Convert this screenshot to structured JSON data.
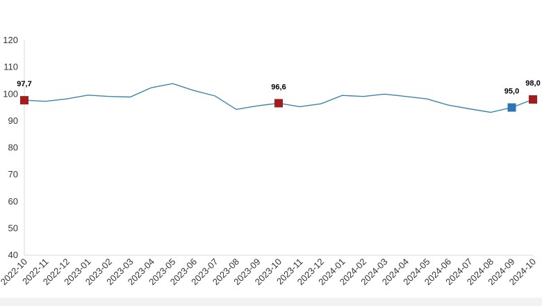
{
  "chart_data": {
    "type": "line",
    "title": "",
    "xlabel": "",
    "ylabel": "",
    "ylim": [
      40,
      120
    ],
    "yticks": [
      40,
      50,
      60,
      70,
      80,
      90,
      100,
      110,
      120
    ],
    "grid": false,
    "categories": [
      "2022-10",
      "2022-11",
      "2022-12",
      "2023-01",
      "2023-02",
      "2023-03",
      "2023-04",
      "2023-05",
      "2023-06",
      "2023-07",
      "2023-08",
      "2023-09",
      "2023-10",
      "2023-11",
      "2023-12",
      "2024-01",
      "2024-02",
      "2024-03",
      "2024-04",
      "2024-05",
      "2024-06",
      "2024-07",
      "2024-08",
      "2024-09",
      "2024-10"
    ],
    "series": [
      {
        "values": [
          97.7,
          97.3,
          98.2,
          99.6,
          99.1,
          98.9,
          102.4,
          103.9,
          101.3,
          99.3,
          94.3,
          95.6,
          96.6,
          95.3,
          96.4,
          99.5,
          99.1,
          100.0,
          99.1,
          98.2,
          95.9,
          94.5,
          93.2,
          95.0,
          98.0
        ],
        "color": "#3a86a8"
      }
    ],
    "highlighted_points": [
      {
        "index": 0,
        "label": "97,7",
        "color": "#a51c1c"
      },
      {
        "index": 12,
        "label": "96,6",
        "color": "#a51c1c"
      },
      {
        "index": 23,
        "label": "95,0",
        "color": "#2e75b6"
      },
      {
        "index": 24,
        "label": "98,0",
        "color": "#a51c1c"
      }
    ]
  }
}
